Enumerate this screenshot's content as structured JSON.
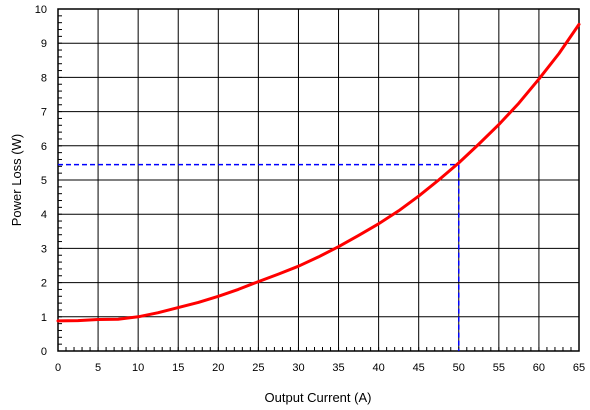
{
  "chart_data": {
    "type": "line",
    "title": "",
    "xlabel": "Output Current (A)",
    "ylabel": "Power Loss (W)",
    "xlim": [
      0,
      65
    ],
    "ylim": [
      0,
      10
    ],
    "xticks": [
      0,
      5,
      10,
      15,
      20,
      25,
      30,
      35,
      40,
      45,
      50,
      55,
      60,
      65
    ],
    "yticks": [
      0,
      1,
      2,
      3,
      4,
      5,
      6,
      7,
      8,
      9,
      10
    ],
    "grid": true,
    "legend": "none",
    "series": [
      {
        "color": "#ff0000",
        "style": "solid",
        "x": [
          0,
          2.5,
          5,
          7.5,
          10,
          12.5,
          15,
          17.5,
          20,
          22.5,
          25,
          27.5,
          30,
          32.5,
          35,
          37.5,
          40,
          42.5,
          45,
          47.5,
          50,
          52.5,
          55,
          57.5,
          60,
          62.5,
          65
        ],
        "y": [
          0.88,
          0.89,
          0.92,
          0.93,
          1.0,
          1.12,
          1.27,
          1.42,
          1.6,
          1.8,
          2.03,
          2.25,
          2.48,
          2.75,
          3.05,
          3.38,
          3.72,
          4.1,
          4.53,
          5.0,
          5.5,
          6.05,
          6.62,
          7.25,
          7.95,
          8.7,
          9.55
        ]
      }
    ],
    "reference_lines": {
      "color": "#0000ff",
      "style": "dashed",
      "x": 50,
      "y": 5.45
    }
  }
}
